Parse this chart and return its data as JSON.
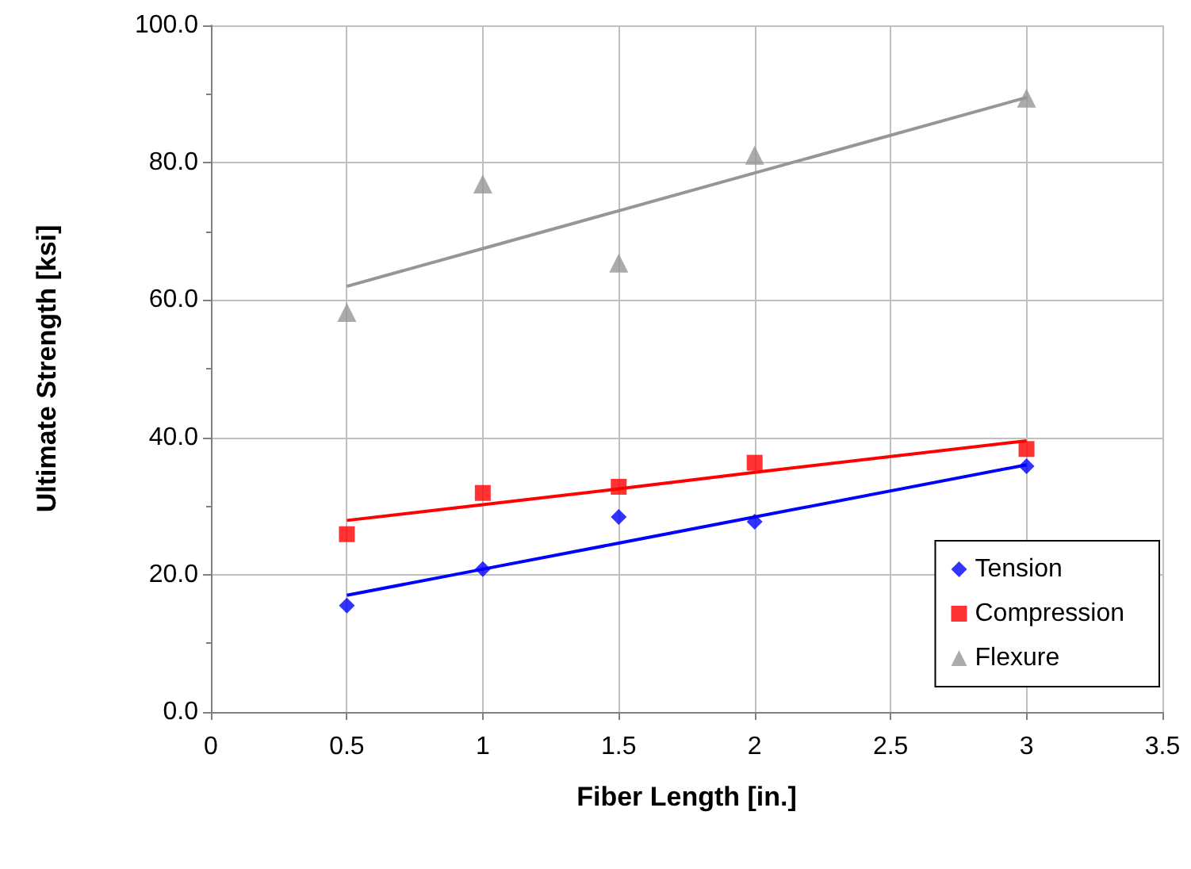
{
  "chart_data": {
    "type": "scatter",
    "xlabel": "Fiber Length [in.]",
    "ylabel": "Ultimate Strength [ksi]",
    "x": [
      0.5,
      1,
      1.5,
      2,
      3
    ],
    "series": [
      {
        "name": "Tension",
        "color": "#0000ff",
        "marker": "diamond",
        "values": [
          15.5,
          20.8,
          28.4,
          27.7,
          35.8
        ]
      },
      {
        "name": "Compression",
        "color": "#ff0000",
        "marker": "square",
        "values": [
          25.9,
          31.9,
          32.8,
          36.3,
          38.3
        ]
      },
      {
        "name": "Flexure",
        "color": "#969696",
        "marker": "triangle",
        "values": [
          58.2,
          76.9,
          65.4,
          81.1,
          89.4
        ]
      },
      {
        "type": "line",
        "color": "#0000ff",
        "marker": "none",
        "values": [
          17.0,
          20.8,
          24.6,
          28.4,
          36.0
        ]
      },
      {
        "type": "line",
        "color": "#ff0000",
        "marker": "none",
        "values": [
          27.9,
          30.2,
          32.5,
          34.9,
          39.5
        ]
      },
      {
        "type": "line",
        "color": "#969696",
        "marker": "none",
        "values": [
          62.0,
          67.5,
          73.0,
          78.5,
          89.5
        ]
      }
    ],
    "xlim": [
      0,
      3.5
    ],
    "xticks": [
      0,
      0.5,
      1,
      1.5,
      2,
      2.5,
      3,
      3.5
    ],
    "ylim": [
      0,
      100
    ],
    "yticks": [
      {
        "value": 0,
        "label": "0.0"
      },
      {
        "value": 20,
        "label": "20.0"
      },
      {
        "value": 40,
        "label": "40.0"
      },
      {
        "value": 60,
        "label": "60.0"
      },
      {
        "value": 80,
        "label": "80.0"
      },
      {
        "value": 100,
        "label": "100.0"
      }
    ],
    "grid": true,
    "legend": "bottom right"
  }
}
